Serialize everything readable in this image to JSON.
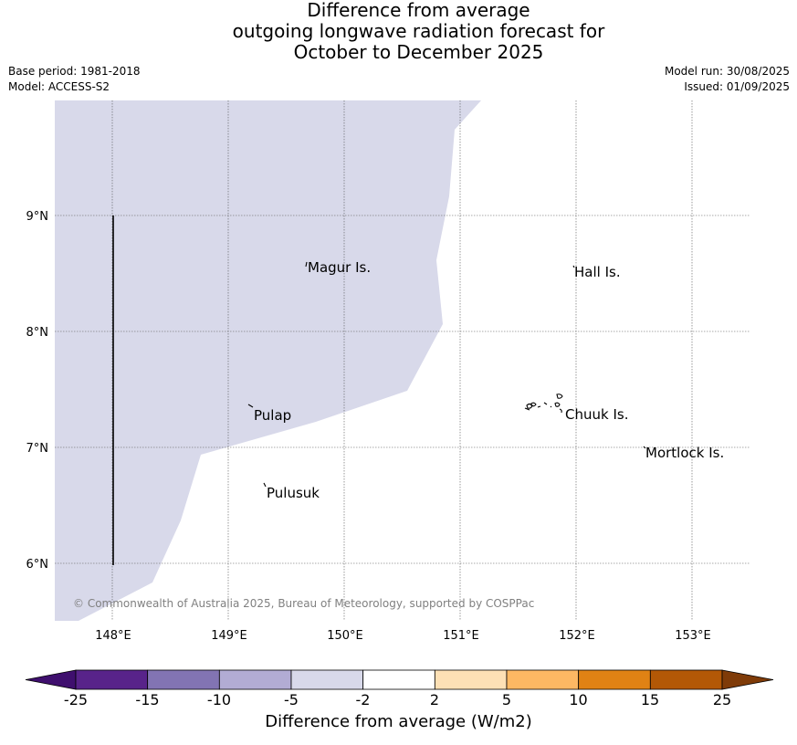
{
  "title": {
    "line1": "Difference from average",
    "line2": "outgoing longwave radiation forecast for",
    "line3": "October to December 2025"
  },
  "meta": {
    "base_period": "Base period: 1981-2018",
    "model": "Model: ACCESS-S2",
    "model_run": "Model run: 30/08/2025",
    "issued": "Issued: 01/09/2025"
  },
  "map": {
    "lon_range": [
      147.5,
      153.5
    ],
    "lat_range": [
      5.5,
      10.0
    ],
    "lon_ticks": [
      "148°E",
      "149°E",
      "150°E",
      "151°E",
      "152°E",
      "153°E"
    ],
    "lat_ticks": [
      "9°N",
      "8°N",
      "7°N",
      "6°N"
    ],
    "gridlines": true,
    "anomaly_region_color": "#d8d9ea",
    "place_labels": [
      "Magur Is.",
      "Hall Is.",
      "Pulap",
      "Chuuk Is.",
      "Mortlock Is.",
      "Pulusuk"
    ],
    "copyright": "© Commonwealth of Australia 2025, Bureau of Meteorology, supported by COSPPac"
  },
  "colorbar": {
    "ticks": [
      "-25",
      "-15",
      "-10",
      "-5",
      "-2",
      "2",
      "5",
      "10",
      "15",
      "25"
    ],
    "colors": [
      "#3f0f6e",
      "#58238a",
      "#8274b3",
      "#b2acd4",
      "#d8d9ea",
      "#ffffff",
      "#fde0b5",
      "#fdb863",
      "#e08214",
      "#b35806",
      "#7f3b08"
    ],
    "label": "Difference from average (W/m2)"
  }
}
